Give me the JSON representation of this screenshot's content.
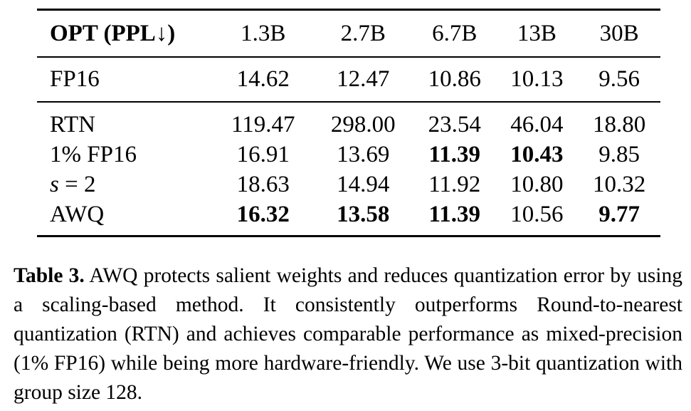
{
  "table": {
    "header": {
      "label": "OPT (PPL↓)",
      "columns": [
        "1.3B",
        "2.7B",
        "6.7B",
        "13B",
        "30B"
      ]
    },
    "baseline": {
      "label": "FP16",
      "values": [
        "14.62",
        "12.47",
        "10.86",
        "10.13",
        "9.56"
      ]
    },
    "rows": [
      {
        "label": "RTN",
        "values": [
          "119.47",
          "298.00",
          "23.54",
          "46.04",
          "18.80"
        ],
        "bold": [
          false,
          false,
          false,
          false,
          false
        ]
      },
      {
        "label": "1% FP16",
        "values": [
          "16.91",
          "13.69",
          "11.39",
          "10.43",
          "9.85"
        ],
        "bold": [
          false,
          false,
          true,
          true,
          false
        ]
      },
      {
        "label_math": "s",
        "label_rest": " = 2",
        "values": [
          "18.63",
          "14.94",
          "11.92",
          "10.80",
          "10.32"
        ],
        "bold": [
          false,
          false,
          false,
          false,
          false
        ]
      },
      {
        "label": "AWQ",
        "values": [
          "16.32",
          "13.58",
          "11.39",
          "10.56",
          "9.77"
        ],
        "bold": [
          true,
          true,
          true,
          false,
          true
        ]
      }
    ]
  },
  "caption": {
    "label": "Table 3.",
    "text": " AWQ protects salient weights and reduces quantization error by using a scaling-based method. It consistently outperforms Round-to-nearest quantization (RTN) and achieves comparable performance as mixed-precision (1% FP16) while being more hardware-friendly. We use 3-bit quantization with group size 128."
  }
}
